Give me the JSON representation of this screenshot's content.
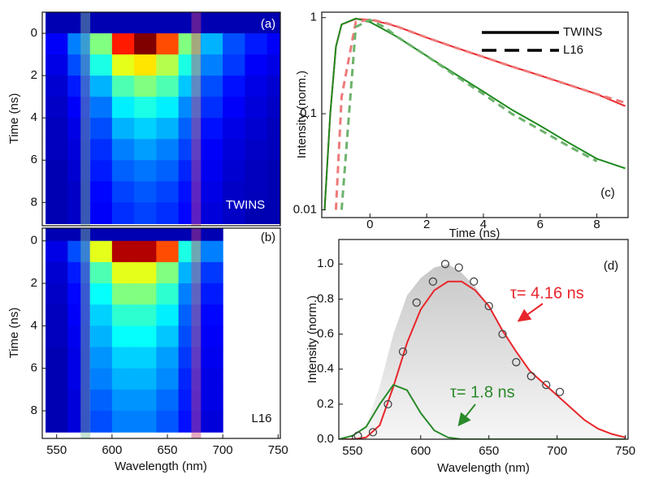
{
  "chart_data": [
    {
      "type": "heatmap",
      "ylabel": "Time (ns)",
      "annotations": [
        "(a)",
        "TWINS"
      ],
      "x": [
        550,
        570,
        590,
        610,
        630,
        650,
        670,
        690,
        710,
        730,
        750
      ],
      "y": [
        -0.5,
        0.5,
        1.5,
        2.5,
        3.5,
        4.5,
        5.5,
        6.5,
        7.5,
        8.5
      ],
      "z": [
        [
          0.05,
          0.05,
          0.05,
          0.05,
          0.05,
          0.05,
          0.05,
          0.05,
          0.05,
          0.05,
          0.05
        ],
        [
          0.12,
          0.25,
          0.5,
          0.85,
          1.0,
          0.8,
          0.5,
          0.3,
          0.2,
          0.15,
          0.12
        ],
        [
          0.1,
          0.2,
          0.4,
          0.6,
          0.65,
          0.55,
          0.4,
          0.25,
          0.18,
          0.12,
          0.1
        ],
        [
          0.08,
          0.15,
          0.3,
          0.45,
          0.5,
          0.45,
          0.32,
          0.2,
          0.14,
          0.1,
          0.08
        ],
        [
          0.07,
          0.12,
          0.24,
          0.36,
          0.4,
          0.36,
          0.26,
          0.17,
          0.12,
          0.09,
          0.07
        ],
        [
          0.06,
          0.1,
          0.2,
          0.3,
          0.33,
          0.3,
          0.22,
          0.14,
          0.1,
          0.08,
          0.06
        ],
        [
          0.06,
          0.09,
          0.17,
          0.25,
          0.28,
          0.25,
          0.19,
          0.12,
          0.09,
          0.07,
          0.06
        ],
        [
          0.05,
          0.08,
          0.15,
          0.22,
          0.24,
          0.22,
          0.16,
          0.11,
          0.08,
          0.06,
          0.05
        ],
        [
          0.05,
          0.07,
          0.13,
          0.19,
          0.21,
          0.19,
          0.14,
          0.1,
          0.07,
          0.06,
          0.05
        ],
        [
          0.05,
          0.07,
          0.12,
          0.17,
          0.19,
          0.17,
          0.13,
          0.09,
          0.07,
          0.05,
          0.05
        ]
      ],
      "xlim": [
        537,
        752
      ],
      "ylim": [
        -1,
        9.1
      ],
      "yreverse": true,
      "yticks": [
        0,
        2,
        4,
        6,
        8
      ],
      "bands": [
        {
          "range": [
            572,
            580
          ],
          "color": "#7fc0a0"
        },
        {
          "range": [
            672,
            680
          ],
          "color": "#d0407a"
        }
      ]
    },
    {
      "type": "heatmap",
      "xlabel": "Wavelength (nm)",
      "ylabel": "Time (ns)",
      "annotations": [
        "(b)",
        "L16"
      ],
      "x": [
        550,
        570,
        590,
        610,
        630,
        650,
        670,
        690
      ],
      "y": [
        -0.5,
        0.5,
        1.5,
        2.5,
        3.5,
        4.5,
        5.5,
        6.5,
        7.5,
        8.5
      ],
      "z": [
        [
          0.05,
          0.05,
          0.05,
          0.05,
          0.05,
          0.05,
          0.05,
          0.05
        ],
        [
          0.1,
          0.2,
          0.6,
          0.95,
          0.95,
          0.8,
          0.4,
          0.25
        ],
        [
          0.08,
          0.15,
          0.45,
          0.6,
          0.6,
          0.5,
          0.3,
          0.18
        ],
        [
          0.07,
          0.13,
          0.38,
          0.5,
          0.5,
          0.42,
          0.25,
          0.15
        ],
        [
          0.06,
          0.12,
          0.33,
          0.42,
          0.42,
          0.36,
          0.22,
          0.13
        ],
        [
          0.06,
          0.11,
          0.3,
          0.38,
          0.38,
          0.32,
          0.2,
          0.12
        ],
        [
          0.05,
          0.1,
          0.27,
          0.33,
          0.33,
          0.28,
          0.18,
          0.11
        ],
        [
          0.05,
          0.1,
          0.25,
          0.3,
          0.3,
          0.26,
          0.16,
          0.1
        ],
        [
          0.05,
          0.09,
          0.22,
          0.27,
          0.27,
          0.23,
          0.15,
          0.1
        ],
        [
          0.05,
          0.09,
          0.2,
          0.25,
          0.25,
          0.21,
          0.14,
          0.09
        ]
      ],
      "xlim": [
        537,
        752
      ],
      "xticks": [
        550,
        600,
        650,
        700,
        750
      ],
      "ylim": [
        -0.6,
        9.3
      ],
      "yreverse": true,
      "yticks": [
        0,
        2,
        4,
        6,
        8
      ],
      "bands": [
        {
          "range": [
            572,
            580
          ],
          "color": "#7fc0a0"
        },
        {
          "range": [
            672,
            680
          ],
          "color": "#d0407a"
        }
      ]
    },
    {
      "type": "line",
      "xlabel": "Time (ns)",
      "ylabel": "Intensity (norm.)",
      "annotations": [
        "(c)"
      ],
      "x": [
        -1.6,
        -1.4,
        -1.2,
        -1,
        -0.5,
        0,
        0.5,
        1,
        2,
        3,
        4,
        5,
        6,
        7,
        8,
        9
      ],
      "series": [
        {
          "color": "#e8262b",
          "dash": false,
          "values": [
            0.01,
            0.1,
            0.5,
            0.85,
            0.97,
            0.95,
            0.88,
            0.8,
            0.62,
            0.49,
            0.39,
            0.31,
            0.25,
            0.2,
            0.16,
            0.12
          ]
        },
        {
          "color": "#1f8a1f",
          "dash": false,
          "values": [
            0.01,
            0.1,
            0.5,
            0.85,
            0.98,
            0.9,
            0.75,
            0.62,
            0.4,
            0.26,
            0.17,
            0.11,
            0.075,
            0.05,
            0.034,
            0.027
          ]
        },
        {
          "color": "#ee7a7a",
          "dash": true,
          "values": [
            null,
            null,
            0.01,
            0.15,
            0.9,
            0.96,
            0.89,
            0.8,
            0.62,
            0.49,
            0.39,
            0.31,
            0.25,
            0.2,
            0.16,
            0.13
          ]
        },
        {
          "color": "#6db36d",
          "dash": true,
          "values": [
            null,
            null,
            null,
            0.01,
            0.8,
            0.95,
            0.8,
            0.62,
            0.4,
            0.25,
            0.16,
            0.1,
            0.068,
            0.046,
            0.032,
            null
          ]
        }
      ],
      "legend": [
        {
          "label": "TWINS",
          "dash": false
        },
        {
          "label": "L16",
          "dash": true
        }
      ],
      "legend_corner": "top-right",
      "xlim": [
        -1.7,
        9.1
      ],
      "xticks": [
        0,
        2,
        4,
        6,
        8
      ],
      "ylim": [
        0.0083,
        1.14
      ],
      "ylog": true,
      "yticks": [
        0.01,
        0.1,
        1
      ]
    },
    {
      "type": "line",
      "xlabel": "Wavelength (nm)",
      "ylabel": "Intensity (norm.)",
      "annotations": [
        "(d)",
        "τ= 4.16 ns",
        "τ= 1.8 ns"
      ],
      "x": [
        540,
        550,
        560,
        570,
        580,
        590,
        600,
        610,
        620,
        630,
        640,
        650,
        660,
        670,
        680,
        690,
        700,
        710,
        720,
        730,
        740,
        750
      ],
      "series": [
        {
          "color": "#d4d4d4",
          "fill": true,
          "values": [
            0,
            0.02,
            0.08,
            0.3,
            0.6,
            0.82,
            0.92,
            0.98,
            1.0,
            0.95,
            0.87,
            0.76,
            0.62,
            0.5,
            0.39,
            0.32,
            0.25,
            0.18,
            0.11,
            0.06,
            0.03,
            0.01
          ]
        },
        {
          "color": "#e8262b",
          "values": [
            0,
            0,
            0.01,
            0.08,
            0.3,
            0.55,
            0.74,
            0.85,
            0.9,
            0.9,
            0.85,
            0.76,
            0.62,
            0.5,
            0.39,
            0.32,
            0.25,
            0.18,
            0.11,
            0.06,
            0.03,
            0.01
          ]
        },
        {
          "color": "#2a8a2a",
          "values": [
            0,
            0.02,
            0.07,
            0.2,
            0.31,
            0.28,
            0.15,
            0.05,
            0.01,
            0,
            0,
            0,
            0,
            0,
            0,
            0,
            0,
            0,
            0,
            0,
            0,
            0
          ]
        },
        {
          "color": "#444444",
          "marker": "circle",
          "x": [
            554,
            565,
            576,
            587,
            597,
            609,
            618,
            628,
            639,
            650,
            660,
            670,
            681,
            692,
            702
          ],
          "values": [
            0.02,
            0.04,
            0.2,
            0.5,
            0.78,
            0.9,
            1.0,
            0.98,
            0.9,
            0.76,
            0.6,
            0.44,
            0.36,
            0.31,
            0.27
          ]
        }
      ],
      "xlim": [
        540,
        752
      ],
      "xticks": [
        550,
        600,
        650,
        700,
        750
      ],
      "ylim": [
        0,
        1.14
      ],
      "yticks": [
        {
          "value": 0,
          "label": "0.0"
        },
        0.2,
        0.4,
        0.6,
        0.8,
        {
          "value": 1,
          "label": "1.0"
        }
      ]
    }
  ]
}
